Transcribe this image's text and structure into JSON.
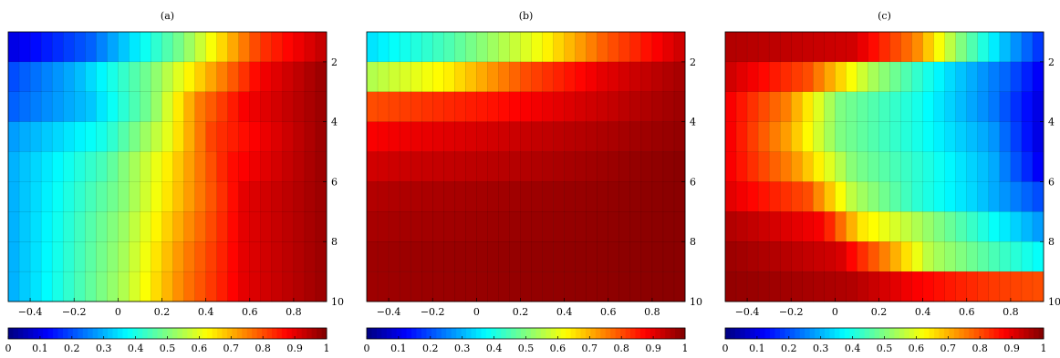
{
  "colormap": "jet",
  "chart_data": [
    {
      "type": "heatmap",
      "title": "(a)",
      "xlim": [
        -0.5,
        0.95
      ],
      "ylim": [
        1,
        10
      ],
      "x_ticks": [
        "-0.4",
        "-0.2",
        "0",
        "0.2",
        "0.4",
        "0.6",
        "0.8"
      ],
      "y_ticks": [
        "2",
        "4",
        "6",
        "8",
        "10"
      ],
      "colorbar": {
        "range": [
          0,
          1
        ],
        "ticks": [
          "0",
          "0.1",
          "0.2",
          "0.3",
          "0.4",
          "0.5",
          "0.6",
          "0.7",
          "0.8",
          "0.9",
          "1"
        ]
      },
      "x_start": -0.5,
      "x_step": 0.05,
      "n_cols": 29,
      "y_start": 1,
      "y_step": 1,
      "n_rows": 9,
      "row_profiles": [
        [
          [
            0,
            0.1
          ],
          [
            0.25,
            0.22
          ],
          [
            0.55,
            0.5
          ],
          [
            0.8,
            0.82
          ],
          [
            1,
            0.93
          ]
        ],
        [
          [
            0,
            0.2
          ],
          [
            0.2,
            0.3
          ],
          [
            0.45,
            0.5
          ],
          [
            0.65,
            0.72
          ],
          [
            0.8,
            0.88
          ],
          [
            1,
            0.97
          ]
        ],
        [
          [
            0,
            0.22
          ],
          [
            0.25,
            0.32
          ],
          [
            0.45,
            0.5
          ],
          [
            0.6,
            0.75
          ],
          [
            0.75,
            0.88
          ],
          [
            1,
            0.97
          ]
        ],
        [
          [
            0,
            0.28
          ],
          [
            0.3,
            0.4
          ],
          [
            0.5,
            0.6
          ],
          [
            0.65,
            0.82
          ],
          [
            1,
            0.97
          ]
        ],
        [
          [
            0,
            0.3
          ],
          [
            0.3,
            0.45
          ],
          [
            0.5,
            0.64
          ],
          [
            0.7,
            0.86
          ],
          [
            1,
            0.97
          ]
        ],
        [
          [
            0,
            0.3
          ],
          [
            0.35,
            0.5
          ],
          [
            0.55,
            0.7
          ],
          [
            0.75,
            0.9
          ],
          [
            1,
            0.97
          ]
        ],
        [
          [
            0,
            0.3
          ],
          [
            0.35,
            0.52
          ],
          [
            0.55,
            0.72
          ],
          [
            0.75,
            0.9
          ],
          [
            1,
            0.97
          ]
        ],
        [
          [
            0,
            0.3
          ],
          [
            0.35,
            0.53
          ],
          [
            0.55,
            0.74
          ],
          [
            0.75,
            0.9
          ],
          [
            1,
            0.97
          ]
        ],
        [
          [
            0,
            0.3
          ],
          [
            0.35,
            0.54
          ],
          [
            0.55,
            0.75
          ],
          [
            0.75,
            0.9
          ],
          [
            1,
            0.97
          ]
        ]
      ]
    },
    {
      "type": "heatmap",
      "title": "(b)",
      "xlim": [
        -0.5,
        0.95
      ],
      "ylim": [
        1,
        10
      ],
      "x_ticks": [
        "-0.4",
        "-0.2",
        "0",
        "0.2",
        "0.4",
        "0.6",
        "0.8"
      ],
      "y_ticks": [
        "2",
        "4",
        "6",
        "8",
        "10"
      ],
      "colorbar": {
        "range": [
          0,
          1
        ],
        "ticks": [
          "0",
          "0.1",
          "0.2",
          "0.3",
          "0.4",
          "0.5",
          "0.6",
          "0.7",
          "0.8",
          "0.9",
          "1"
        ]
      },
      "x_start": -0.5,
      "x_step": 0.05,
      "n_cols": 29,
      "y_start": 1,
      "y_step": 1,
      "n_rows": 9,
      "row_profiles": [
        [
          [
            0,
            0.35
          ],
          [
            0.25,
            0.45
          ],
          [
            0.55,
            0.62
          ],
          [
            0.75,
            0.78
          ],
          [
            1,
            0.92
          ]
        ],
        [
          [
            0,
            0.55
          ],
          [
            0.25,
            0.64
          ],
          [
            0.5,
            0.8
          ],
          [
            0.75,
            0.9
          ],
          [
            1,
            0.96
          ]
        ],
        [
          [
            0,
            0.8
          ],
          [
            0.4,
            0.86
          ],
          [
            0.7,
            0.92
          ],
          [
            1,
            0.97
          ]
        ],
        [
          [
            0,
            0.88
          ],
          [
            0.5,
            0.93
          ],
          [
            1,
            0.98
          ]
        ],
        [
          [
            0,
            0.92
          ],
          [
            0.5,
            0.95
          ],
          [
            1,
            0.99
          ]
        ],
        [
          [
            0,
            0.95
          ],
          [
            1,
            0.99
          ]
        ],
        [
          [
            0,
            0.96
          ],
          [
            1,
            0.99
          ]
        ],
        [
          [
            0,
            0.97
          ],
          [
            1,
            0.99
          ]
        ],
        [
          [
            0,
            0.97
          ],
          [
            1,
            0.99
          ]
        ]
      ]
    },
    {
      "type": "heatmap",
      "title": "(c)",
      "xlim": [
        -0.5,
        0.95
      ],
      "ylim": [
        1,
        10
      ],
      "x_ticks": [
        "-0.4",
        "-0.2",
        "0",
        "0.2",
        "0.4",
        "0.6",
        "0.8"
      ],
      "y_ticks": [
        "2",
        "4",
        "6",
        "8",
        "10"
      ],
      "colorbar": {
        "range": [
          0,
          1
        ],
        "ticks": [
          "0",
          "0.1",
          "0.2",
          "0.3",
          "0.4",
          "0.5",
          "0.6",
          "0.7",
          "0.8",
          "0.9",
          "1"
        ]
      },
      "x_start": -0.5,
      "x_step": 0.05,
      "n_cols": 29,
      "y_start": 1,
      "y_step": 1,
      "n_rows": 9,
      "row_profiles": [
        [
          [
            0,
            0.95
          ],
          [
            0.4,
            0.92
          ],
          [
            0.6,
            0.75
          ],
          [
            0.75,
            0.5
          ],
          [
            0.9,
            0.3
          ],
          [
            1,
            0.18
          ]
        ],
        [
          [
            0,
            0.92
          ],
          [
            0.25,
            0.8
          ],
          [
            0.45,
            0.55
          ],
          [
            0.7,
            0.35
          ],
          [
            0.9,
            0.22
          ],
          [
            1,
            0.12
          ]
        ],
        [
          [
            0,
            0.88
          ],
          [
            0.18,
            0.75
          ],
          [
            0.35,
            0.5
          ],
          [
            0.6,
            0.4
          ],
          [
            0.85,
            0.25
          ],
          [
            1,
            0.1
          ]
        ],
        [
          [
            0,
            0.88
          ],
          [
            0.18,
            0.72
          ],
          [
            0.35,
            0.5
          ],
          [
            0.6,
            0.4
          ],
          [
            0.85,
            0.28
          ],
          [
            1,
            0.1
          ]
        ],
        [
          [
            0,
            0.88
          ],
          [
            0.2,
            0.74
          ],
          [
            0.4,
            0.5
          ],
          [
            0.65,
            0.4
          ],
          [
            0.85,
            0.3
          ],
          [
            1,
            0.12
          ]
        ],
        [
          [
            0,
            0.9
          ],
          [
            0.25,
            0.8
          ],
          [
            0.4,
            0.55
          ],
          [
            0.6,
            0.42
          ],
          [
            0.8,
            0.33
          ],
          [
            1,
            0.2
          ]
        ],
        [
          [
            0,
            0.95
          ],
          [
            0.3,
            0.88
          ],
          [
            0.42,
            0.65
          ],
          [
            0.6,
            0.55
          ],
          [
            0.8,
            0.42
          ],
          [
            1,
            0.28
          ]
        ],
        [
          [
            0,
            0.97
          ],
          [
            0.35,
            0.92
          ],
          [
            0.5,
            0.75
          ],
          [
            0.65,
            0.55
          ],
          [
            0.85,
            0.45
          ],
          [
            1,
            0.38
          ]
        ],
        [
          [
            0,
            0.98
          ],
          [
            0.4,
            0.95
          ],
          [
            0.6,
            0.88
          ],
          [
            0.85,
            0.82
          ],
          [
            1,
            0.8
          ]
        ]
      ]
    }
  ]
}
